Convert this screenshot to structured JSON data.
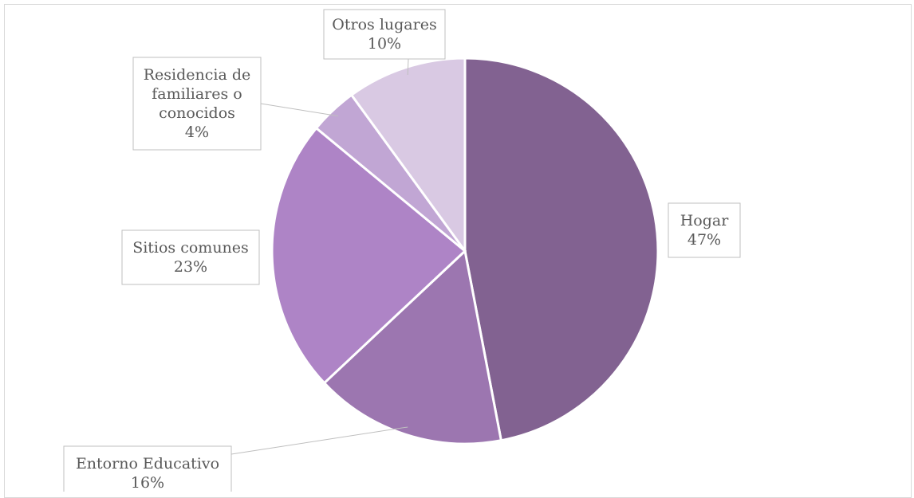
{
  "chart_data": {
    "type": "pie",
    "start_angle_deg": 0,
    "direction": "clockwise",
    "legend": "none",
    "slices": [
      {
        "label": "Hogar",
        "value": 47,
        "value_label": "47%",
        "color": "#826291"
      },
      {
        "label": "Entorno Educativo",
        "value": 16,
        "value_label": "16%",
        "color": "#9c76b0"
      },
      {
        "label": "Sitios comunes",
        "value": 23,
        "value_label": "23%",
        "color": "#ae84c6"
      },
      {
        "label": "Residencia de familiares o conocidos",
        "label_lines": [
          "Residencia de",
          "familiares o",
          "conocidos"
        ],
        "value": 4,
        "value_label": "4%",
        "color": "#c1a6d4"
      },
      {
        "label": "Otros lugares",
        "value": 10,
        "value_label": "10%",
        "color": "#d9c9e3"
      }
    ]
  }
}
